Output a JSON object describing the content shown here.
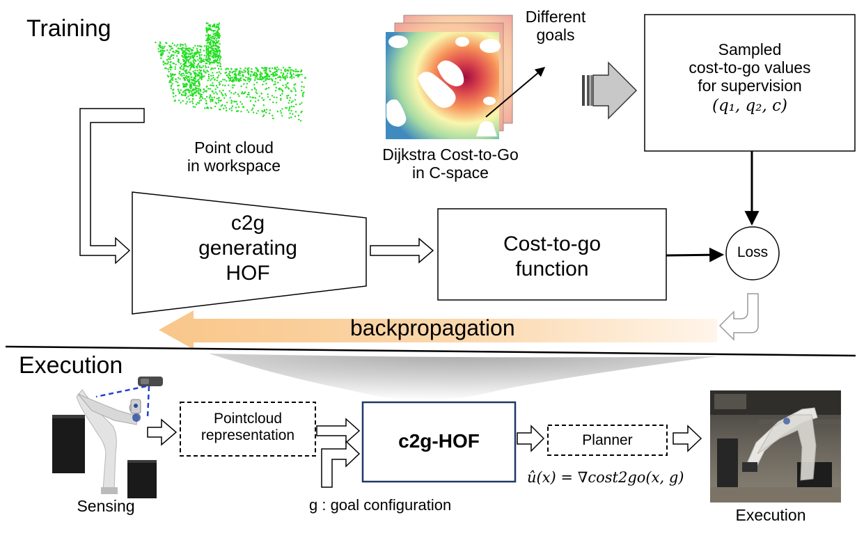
{
  "training": {
    "section_title": "Training",
    "point_cloud_label": [
      "Point cloud",
      "in workspace"
    ],
    "dijkstra_label": [
      "Dijkstra Cost-to-Go",
      "in C-space"
    ],
    "different_goals": [
      "Different",
      "goals"
    ],
    "sampled_box": [
      "Sampled",
      "cost-to-go values",
      "for supervision"
    ],
    "sampled_formula": "(q₁, q₂, c)",
    "hof_box": [
      "c2g",
      "generating",
      "HOF"
    ],
    "cost_function_box": [
      "Cost-to-go",
      "function"
    ],
    "loss": "Loss",
    "backprop": "backpropagation"
  },
  "execution": {
    "section_title": "Execution",
    "sensing": "Sensing",
    "pointcloud_box": [
      "Pointcloud",
      "representation"
    ],
    "c2g_hof": "c2g-HOF",
    "planner": "Planner",
    "policy_formula": "û(x) = ∇cost2go(x, g)",
    "goal_label": "g : goal configuration",
    "execution_label": "Execution"
  },
  "colors": {
    "backprop_arrow": "#fbd8ad",
    "point_cloud": "#22dd22",
    "heatmap_high": "#a00a3f",
    "heatmap_mid": "#f9f6ac",
    "heatmap_low": "#3f8bbf",
    "c2g_hof_border": "#1f3864"
  }
}
